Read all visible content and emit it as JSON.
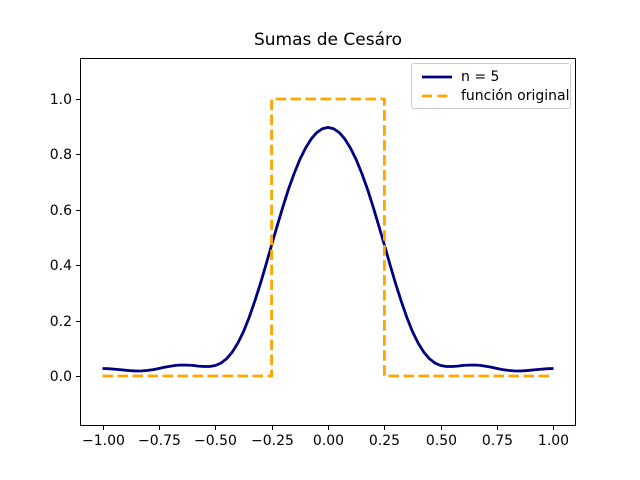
{
  "figure": {
    "background": "#ffffff",
    "axes_border_color": "#000000"
  },
  "legend": {
    "border_color": "#cccccc",
    "position": "upper right"
  },
  "chart_data": {
    "type": "line",
    "title": "Sumas de Cesáro",
    "xlabel": "",
    "ylabel": "",
    "grid": false,
    "legend_position": "upper right",
    "xlim": [
      -1.1,
      1.1
    ],
    "ylim": [
      -0.1805,
      1.148
    ],
    "x_ticks": {
      "values": [
        -1,
        -0.75,
        -0.5,
        -0.25,
        0,
        0.25,
        0.5,
        0.75,
        1
      ],
      "labels": [
        "−1.00",
        "−0.75",
        "−0.50",
        "−0.25",
        "0.00",
        "0.25",
        "0.50",
        "0.75",
        "1.00"
      ]
    },
    "y_ticks": {
      "values": [
        0,
        0.2,
        0.4,
        0.6,
        0.8,
        1
      ],
      "labels": [
        "0.0",
        "0.2",
        "0.4",
        "0.6",
        "0.8",
        "1.0"
      ]
    },
    "series": [
      {
        "name": "n = 5",
        "color": "#000080",
        "style": "solid",
        "x": [
          -1,
          -0.975,
          -0.95,
          -0.925,
          -0.9,
          -0.875,
          -0.85,
          -0.825,
          -0.8,
          -0.775,
          -0.75,
          -0.725,
          -0.7,
          -0.675,
          -0.65,
          -0.625,
          -0.6,
          -0.575,
          -0.55,
          -0.525,
          -0.5,
          -0.475,
          -0.45,
          -0.425,
          -0.4,
          -0.375,
          -0.35,
          -0.325,
          -0.3,
          -0.275,
          -0.25,
          -0.225,
          -0.2,
          -0.175,
          -0.15,
          -0.125,
          -0.1,
          -0.075,
          -0.05,
          -0.025,
          0,
          0.025,
          0.05,
          0.075,
          0.1,
          0.125,
          0.15,
          0.175,
          0.2,
          0.225,
          0.25,
          0.275,
          0.3,
          0.325,
          0.35,
          0.375,
          0.4,
          0.425,
          0.45,
          0.475,
          0.5,
          0.525,
          0.55,
          0.575,
          0.6,
          0.625,
          0.65,
          0.675,
          0.7,
          0.725,
          0.75,
          0.775,
          0.8,
          0.825,
          0.85,
          0.875,
          0.9,
          0.925,
          0.95,
          0.975,
          1
        ],
        "y": [
          0.027,
          0.0265,
          0.025,
          0.023,
          0.0208,
          0.019,
          0.0181,
          0.0185,
          0.0202,
          0.0232,
          0.0272,
          0.0314,
          0.0353,
          0.0382,
          0.0396,
          0.0395,
          0.0381,
          0.0359,
          0.0342,
          0.0342,
          0.0378,
          0.0466,
          0.0622,
          0.0859,
          0.1186,
          0.1604,
          0.2109,
          0.2692,
          0.3336,
          0.4022,
          0.4728,
          0.5432,
          0.6109,
          0.6742,
          0.7314,
          0.7811,
          0.8226,
          0.8552,
          0.8786,
          0.8927,
          0.8974,
          0.8927,
          0.8786,
          0.8552,
          0.8226,
          0.7811,
          0.7314,
          0.6742,
          0.6109,
          0.5432,
          0.4728,
          0.4022,
          0.3336,
          0.2692,
          0.2109,
          0.1604,
          0.1186,
          0.0859,
          0.0622,
          0.0466,
          0.0378,
          0.0342,
          0.0342,
          0.0359,
          0.0381,
          0.0395,
          0.0396,
          0.0382,
          0.0353,
          0.0314,
          0.0272,
          0.0232,
          0.0202,
          0.0185,
          0.0181,
          0.019,
          0.0208,
          0.023,
          0.025,
          0.0265,
          0.027
        ]
      },
      {
        "name": "función original",
        "color": "#FFA500",
        "style": "dashed",
        "x": [
          -1,
          -0.25,
          -0.25,
          0.25,
          0.25,
          1
        ],
        "y": [
          0,
          0,
          1,
          1,
          0,
          0
        ]
      }
    ]
  }
}
